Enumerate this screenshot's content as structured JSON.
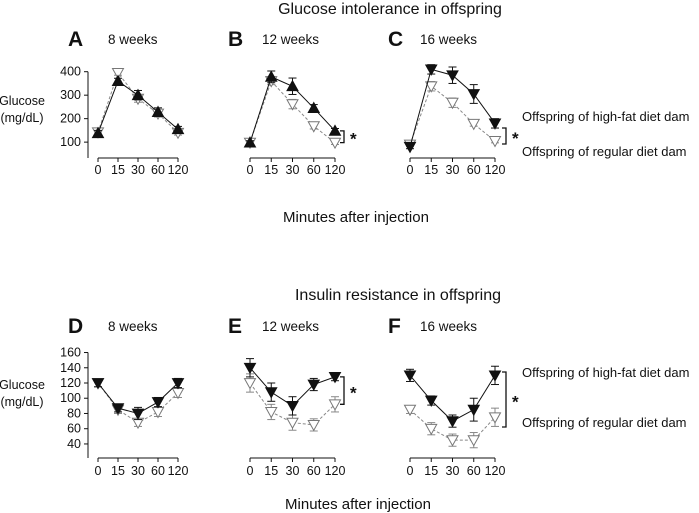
{
  "rows": [
    {
      "title": "Glucose intolerance in offspring",
      "ylabel": [
        "Glucose",
        "(mg/dL)"
      ],
      "xlabel": "Minutes after injection",
      "legend": [
        "Offspring of high-fat diet dam",
        "Offspring of regular diet dam"
      ],
      "charts": [
        {
          "type": "line",
          "label": "A",
          "subtitle": "8 weeks",
          "x": [
            0,
            15,
            30,
            60,
            120
          ],
          "x_ticks": [
            "0",
            "15",
            "30",
            "60",
            "120"
          ],
          "ylim": [
            75,
            420
          ],
          "y_ticks": [
            100,
            200,
            300,
            400
          ],
          "significance": "",
          "series": [
            {
              "marker": "triangle-up",
              "fill": "filled",
              "line": "solid",
              "values": [
                138,
                360,
                300,
                228,
                155
              ],
              "errors": [
                12,
                12,
                20,
                18,
                12
              ]
            },
            {
              "marker": "triangle-down",
              "fill": "open",
              "line": "dashed",
              "values": [
                142,
                395,
                285,
                222,
                140
              ],
              "errors": [
                10,
                10,
                15,
                15,
                10
              ]
            }
          ]
        },
        {
          "type": "line",
          "label": "B",
          "subtitle": "12 weeks",
          "x": [
            0,
            15,
            30,
            60,
            120
          ],
          "x_ticks": [
            "0",
            "15",
            "30",
            "60",
            "120"
          ],
          "ylim": [
            75,
            420
          ],
          "y_ticks": [],
          "significance": "*",
          "series": [
            {
              "marker": "triangle-up",
              "fill": "filled",
              "line": "solid",
              "values": [
                98,
                378,
                338,
                245,
                148
              ],
              "errors": [
                8,
                25,
                35,
                15,
                10
              ]
            },
            {
              "marker": "triangle-down",
              "fill": "open",
              "line": "dashed",
              "values": [
                98,
                360,
                262,
                168,
                98
              ],
              "errors": [
                8,
                15,
                20,
                12,
                8
              ]
            }
          ]
        },
        {
          "type": "line",
          "label": "C",
          "subtitle": "16 weeks",
          "x": [
            0,
            15,
            30,
            60,
            120
          ],
          "x_ticks": [
            "0",
            "15",
            "30",
            "60",
            "120"
          ],
          "ylim": [
            75,
            420
          ],
          "y_ticks": [],
          "significance": "*",
          "series": [
            {
              "marker": "triangle-down",
              "fill": "filled",
              "line": "solid",
              "values": [
                80,
                410,
                385,
                305,
                180
              ],
              "errors": [
                8,
                20,
                35,
                40,
                20
              ]
            },
            {
              "marker": "triangle-down",
              "fill": "open",
              "line": "dashed",
              "values": [
                90,
                338,
                268,
                178,
                105
              ],
              "errors": [
                8,
                20,
                20,
                10,
                8
              ]
            }
          ]
        }
      ]
    },
    {
      "title": "Insulin resistance in offspring",
      "ylabel": [
        "Glucose",
        "(mg/dL)"
      ],
      "xlabel": "Minutes after injection",
      "legend": [
        "Offspring of high-fat diet dam",
        "Offspring of regular diet dam"
      ],
      "charts": [
        {
          "type": "line",
          "label": "D",
          "subtitle": "8 weeks",
          "x": [
            0,
            15,
            30,
            60,
            120
          ],
          "x_ticks": [
            "0",
            "15",
            "30",
            "60",
            "120"
          ],
          "ylim": [
            36,
            162
          ],
          "y_ticks": [
            40,
            60,
            80,
            100,
            120,
            140,
            160
          ],
          "significance": "",
          "series": [
            {
              "marker": "triangle-down",
              "fill": "filled",
              "line": "solid",
              "values": [
                120,
                87,
                80,
                95,
                120
              ],
              "errors": [
                5,
                5,
                8,
                6,
                6
              ]
            },
            {
              "marker": "triangle-down",
              "fill": "open",
              "line": "dashed",
              "values": [
                120,
                85,
                68,
                82,
                107
              ],
              "errors": [
                5,
                5,
                5,
                6,
                6
              ]
            }
          ]
        },
        {
          "type": "line",
          "label": "E",
          "subtitle": "12 weeks",
          "x": [
            0,
            15,
            30,
            60,
            120
          ],
          "x_ticks": [
            "0",
            "15",
            "30",
            "60",
            "120"
          ],
          "ylim": [
            36,
            162
          ],
          "y_ticks": [],
          "significance": "*",
          "series": [
            {
              "marker": "triangle-down",
              "fill": "filled",
              "line": "solid",
              "values": [
                140,
                108,
                90,
                118,
                128
              ],
              "errors": [
                12,
                12,
                12,
                8,
                5
              ]
            },
            {
              "marker": "triangle-down",
              "fill": "open",
              "line": "dashed",
              "values": [
                120,
                82,
                68,
                65,
                92
              ],
              "errors": [
                12,
                10,
                10,
                8,
                10
              ]
            }
          ]
        },
        {
          "type": "line",
          "label": "F",
          "subtitle": "16 weeks",
          "x": [
            0,
            15,
            30,
            60,
            120
          ],
          "x_ticks": [
            "0",
            "15",
            "30",
            "60",
            "120"
          ],
          "ylim": [
            36,
            162
          ],
          "y_ticks": [],
          "significance": "*",
          "series": [
            {
              "marker": "triangle-down",
              "fill": "filled",
              "line": "solid",
              "values": [
                130,
                97,
                70,
                85,
                130
              ],
              "errors": [
                8,
                6,
                8,
                15,
                12
              ]
            },
            {
              "marker": "triangle-down",
              "fill": "open",
              "line": "dashed",
              "values": [
                85,
                60,
                45,
                45,
                75
              ],
              "errors": [
                5,
                8,
                8,
                10,
                12
              ]
            }
          ]
        }
      ]
    }
  ]
}
